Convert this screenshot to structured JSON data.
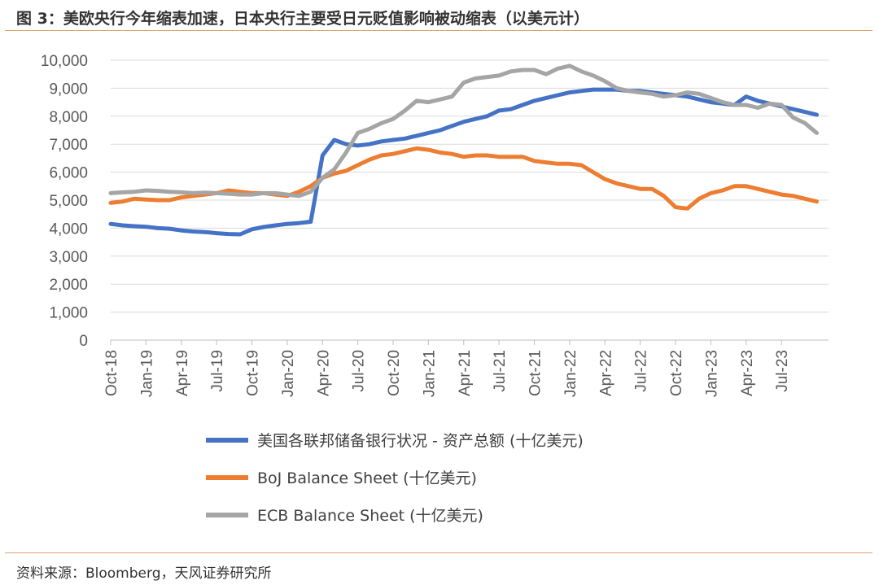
{
  "figure": {
    "title": "图 3：美欧央行今年缩表加速，日本央行主要受日元贬值影响被动缩表（以美元计）",
    "source": "资料来源：Bloomberg，天风证券研究所"
  },
  "chart_data": {
    "type": "line",
    "title": "",
    "xlabel": "",
    "ylabel": "",
    "ylim": [
      0,
      10000
    ],
    "y_ticks": [
      0,
      1000,
      2000,
      3000,
      4000,
      5000,
      6000,
      7000,
      8000,
      9000,
      10000
    ],
    "y_tick_labels": [
      "0",
      "1,000",
      "2,000",
      "3,000",
      "4,000",
      "5,000",
      "6,000",
      "7,000",
      "8,000",
      "9,000",
      "10,000"
    ],
    "x_tick_labels": [
      "Oct-18",
      "Jan-19",
      "Apr-19",
      "Jul-19",
      "Oct-19",
      "Jan-20",
      "Apr-20",
      "Jul-20",
      "Oct-20",
      "Jan-21",
      "Apr-21",
      "Jul-21",
      "Oct-21",
      "Jan-22",
      "Apr-22",
      "Jul-22",
      "Oct-22",
      "Jan-23",
      "Apr-23",
      "Jul-23"
    ],
    "grid": "horizontal",
    "legend_position": "bottom",
    "x": [
      "2018-10",
      "2018-11",
      "2018-12",
      "2019-01",
      "2019-02",
      "2019-03",
      "2019-04",
      "2019-05",
      "2019-06",
      "2019-07",
      "2019-08",
      "2019-09",
      "2019-10",
      "2019-11",
      "2019-12",
      "2020-01",
      "2020-02",
      "2020-03",
      "2020-04",
      "2020-05",
      "2020-06",
      "2020-07",
      "2020-08",
      "2020-09",
      "2020-10",
      "2020-11",
      "2020-12",
      "2021-01",
      "2021-02",
      "2021-03",
      "2021-04",
      "2021-05",
      "2021-06",
      "2021-07",
      "2021-08",
      "2021-09",
      "2021-10",
      "2021-11",
      "2021-12",
      "2022-01",
      "2022-02",
      "2022-03",
      "2022-04",
      "2022-05",
      "2022-06",
      "2022-07",
      "2022-08",
      "2022-09",
      "2022-10",
      "2022-11",
      "2022-12",
      "2023-01",
      "2023-02",
      "2023-03",
      "2023-04",
      "2023-05",
      "2023-06",
      "2023-07",
      "2023-08",
      "2023-09",
      "2023-10"
    ],
    "series": [
      {
        "name": "美国各联邦储备银行状况 - 资产总额 (十亿美元)",
        "color": "#4472c4",
        "values": [
          4150,
          4100,
          4070,
          4050,
          4000,
          3980,
          3920,
          3880,
          3860,
          3820,
          3790,
          3780,
          3960,
          4040,
          4100,
          4150,
          4180,
          4230,
          6600,
          7150,
          7000,
          6950,
          7000,
          7100,
          7150,
          7200,
          7300,
          7400,
          7500,
          7650,
          7800,
          7900,
          8000,
          8200,
          8250,
          8400,
          8550,
          8650,
          8750,
          8850,
          8900,
          8950,
          8950,
          8950,
          8900,
          8900,
          8850,
          8800,
          8750,
          8700,
          8600,
          8500,
          8450,
          8400,
          8700,
          8550,
          8450,
          8350,
          8250,
          8150,
          8050
        ]
      },
      {
        "name": "BoJ Balance Sheet (十亿美元)",
        "color": "#ed7d31",
        "values": [
          4900,
          4950,
          5050,
          5020,
          5000,
          5000,
          5100,
          5150,
          5200,
          5250,
          5350,
          5300,
          5250,
          5250,
          5200,
          5150,
          5300,
          5500,
          5800,
          5950,
          6050,
          6250,
          6450,
          6600,
          6650,
          6750,
          6850,
          6800,
          6700,
          6650,
          6550,
          6600,
          6600,
          6550,
          6550,
          6550,
          6400,
          6350,
          6300,
          6300,
          6250,
          6000,
          5750,
          5600,
          5500,
          5400,
          5400,
          5150,
          4750,
          4700,
          5050,
          5250,
          5350,
          5500,
          5500,
          5400,
          5300,
          5200,
          5150,
          5050,
          4950
        ]
      },
      {
        "name": "ECB Balance Sheet (十亿美元)",
        "color": "#a5a5a5",
        "values": [
          5250,
          5280,
          5300,
          5350,
          5330,
          5300,
          5280,
          5250,
          5270,
          5250,
          5230,
          5200,
          5200,
          5250,
          5250,
          5200,
          5150,
          5300,
          5800,
          6100,
          6700,
          7400,
          7550,
          7750,
          7900,
          8200,
          8550,
          8500,
          8600,
          8700,
          9200,
          9350,
          9400,
          9450,
          9600,
          9650,
          9650,
          9500,
          9700,
          9800,
          9600,
          9450,
          9250,
          9000,
          8900,
          8850,
          8800,
          8700,
          8750,
          8850,
          8800,
          8650,
          8500,
          8400,
          8400,
          8300,
          8450,
          8400,
          7950,
          7750,
          7400
        ]
      }
    ]
  }
}
